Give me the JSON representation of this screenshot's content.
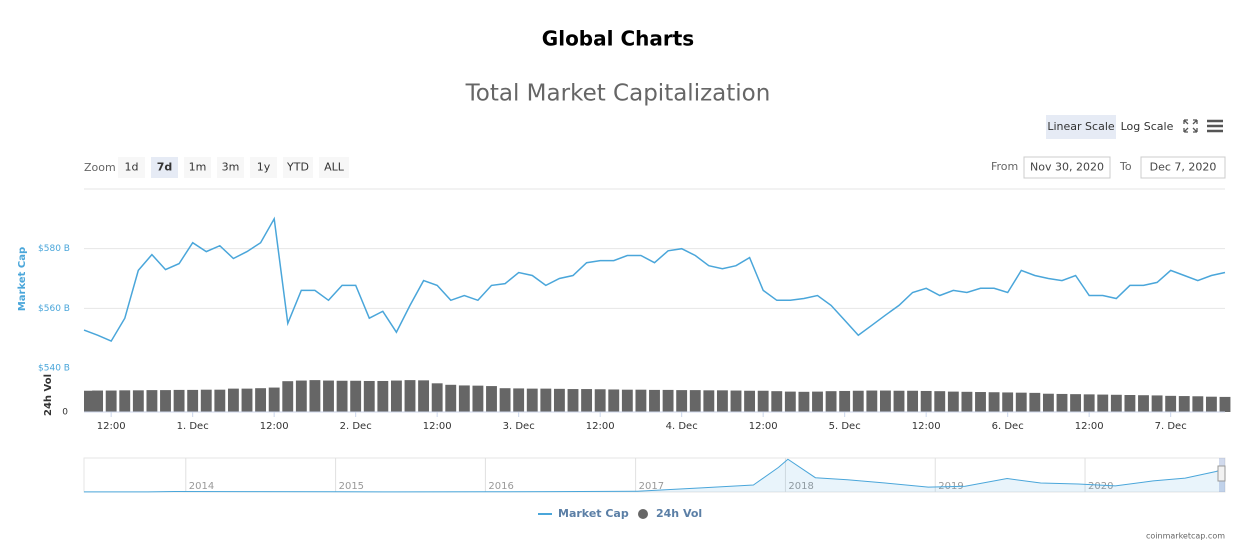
{
  "page_title": "Global Charts",
  "chart_data": {
    "type": "line",
    "title": "Total Market Capitalization",
    "scale_buttons": [
      "Linear Scale",
      "Log Scale"
    ],
    "selected_scale": 0,
    "zoom_label": "Zoom",
    "zoom_buttons": [
      "1d",
      "7d",
      "1m",
      "3m",
      "1y",
      "YTD",
      "ALL"
    ],
    "selected_zoom": 1,
    "from_label": "From",
    "from_date": "Nov 30, 2020",
    "to_label": "To",
    "to_date": "Dec 7, 2020",
    "ylabel": "Market Cap",
    "y2label": "24h Vol",
    "xlim": [
      "2020-11-30T08:00",
      "2020-12-07T08:00"
    ],
    "xticks": [
      {
        "value": "2020-11-30T12:00",
        "label": "12:00"
      },
      {
        "value": "2020-12-01T00:00",
        "label": "1. Dec"
      },
      {
        "value": "2020-12-01T12:00",
        "label": "12:00"
      },
      {
        "value": "2020-12-02T00:00",
        "label": "2. Dec"
      },
      {
        "value": "2020-12-02T12:00",
        "label": "12:00"
      },
      {
        "value": "2020-12-03T00:00",
        "label": "3. Dec"
      },
      {
        "value": "2020-12-03T12:00",
        "label": "12:00"
      },
      {
        "value": "2020-12-04T00:00",
        "label": "4. Dec"
      },
      {
        "value": "2020-12-04T12:00",
        "label": "12:00"
      },
      {
        "value": "2020-12-05T00:00",
        "label": "5. Dec"
      },
      {
        "value": "2020-12-05T12:00",
        "label": "12:00"
      },
      {
        "value": "2020-12-06T00:00",
        "label": "6. Dec"
      },
      {
        "value": "2020-12-06T12:00",
        "label": "12:00"
      },
      {
        "value": "2020-12-07T00:00",
        "label": "7. Dec"
      }
    ],
    "ylim": [
      540,
      600
    ],
    "yticks": [
      {
        "value": 540,
        "label": "$540 B"
      },
      {
        "value": 560,
        "label": "$560 B"
      },
      {
        "value": 580,
        "label": "$580 B"
      }
    ],
    "y2lim": [
      0,
      160
    ],
    "y2ticks": [
      0
    ],
    "grid": true,
    "x": [
      "2020-11-30T08:00",
      "2020-11-30T10:00",
      "2020-11-30T12:00",
      "2020-11-30T14:00",
      "2020-11-30T16:00",
      "2020-11-30T18:00",
      "2020-11-30T20:00",
      "2020-11-30T22:00",
      "2020-12-01T00:00",
      "2020-12-01T02:00",
      "2020-12-01T04:00",
      "2020-12-01T06:00",
      "2020-12-01T08:00",
      "2020-12-01T10:00",
      "2020-12-01T12:00",
      "2020-12-01T14:00",
      "2020-12-01T16:00",
      "2020-12-01T18:00",
      "2020-12-01T20:00",
      "2020-12-01T22:00",
      "2020-12-02T00:00",
      "2020-12-02T02:00",
      "2020-12-02T04:00",
      "2020-12-02T06:00",
      "2020-12-02T08:00",
      "2020-12-02T10:00",
      "2020-12-02T12:00",
      "2020-12-02T14:00",
      "2020-12-02T16:00",
      "2020-12-02T18:00",
      "2020-12-02T20:00",
      "2020-12-02T22:00",
      "2020-12-03T00:00",
      "2020-12-03T02:00",
      "2020-12-03T04:00",
      "2020-12-03T06:00",
      "2020-12-03T08:00",
      "2020-12-03T10:00",
      "2020-12-03T12:00",
      "2020-12-03T14:00",
      "2020-12-03T16:00",
      "2020-12-03T18:00",
      "2020-12-03T20:00",
      "2020-12-03T22:00",
      "2020-12-04T00:00",
      "2020-12-04T02:00",
      "2020-12-04T04:00",
      "2020-12-04T06:00",
      "2020-12-04T08:00",
      "2020-12-04T10:00",
      "2020-12-04T12:00",
      "2020-12-04T14:00",
      "2020-12-04T16:00",
      "2020-12-04T18:00",
      "2020-12-04T20:00",
      "2020-12-04T22:00",
      "2020-12-05T00:00",
      "2020-12-05T02:00",
      "2020-12-05T04:00",
      "2020-12-05T06:00",
      "2020-12-05T08:00",
      "2020-12-05T10:00",
      "2020-12-05T12:00",
      "2020-12-05T14:00",
      "2020-12-05T16:00",
      "2020-12-05T18:00",
      "2020-12-05T20:00",
      "2020-12-05T22:00",
      "2020-12-06T00:00",
      "2020-12-06T02:00",
      "2020-12-06T04:00",
      "2020-12-06T06:00",
      "2020-12-06T08:00",
      "2020-12-06T10:00",
      "2020-12-06T12:00",
      "2020-12-06T14:00",
      "2020-12-06T16:00",
      "2020-12-06T18:00",
      "2020-12-06T20:00",
      "2020-12-06T22:00",
      "2020-12-07T00:00",
      "2020-12-07T02:00",
      "2020-12-07T04:00",
      "2020-12-07T06:00",
      "2020-12-07T08:00"
    ],
    "series": [
      {
        "name": "Market Cap",
        "color": "#4aa6da",
        "values": [
          552.7,
          551,
          549,
          556.7,
          572.7,
          578,
          573,
          575,
          582,
          579,
          581,
          576.7,
          579,
          582,
          590,
          555,
          566,
          566,
          562.7,
          567.7,
          567.7,
          556.7,
          559,
          552,
          561,
          569.3,
          567.7,
          562.7,
          564.3,
          562.7,
          567.7,
          568.3,
          572,
          571,
          567.7,
          570,
          571,
          575.3,
          576,
          576,
          577.7,
          577.7,
          575.3,
          579.3,
          580,
          577.7,
          574.3,
          573.3,
          574.3,
          577,
          566,
          562.7,
          562.7,
          563.3,
          564.3,
          561,
          556,
          551,
          554.3,
          557.7,
          561,
          565.3,
          566.7,
          564.3,
          566,
          565.3,
          566.7,
          566.7,
          565.3,
          572.7,
          571,
          570,
          569.3,
          571,
          564.3,
          564.3,
          563.3,
          567.7,
          567.7,
          568.7,
          572.7,
          571,
          569.3,
          571,
          572
        ]
      },
      {
        "name": "24h Vol",
        "color": "#666666",
        "axis": "y2",
        "values": [
          100,
          101,
          101,
          102,
          102,
          103,
          103,
          104,
          104,
          105,
          105,
          110,
          110,
          112,
          115,
          145,
          148,
          150,
          148,
          147,
          147,
          146,
          146,
          148,
          150,
          149,
          135,
          128,
          125,
          124,
          122,
          112,
          111,
          110,
          110,
          109,
          108,
          108,
          107,
          106,
          105,
          105,
          104,
          104,
          103,
          103,
          102,
          102,
          101,
          100,
          100,
          98,
          96,
          95,
          96,
          98,
          99,
          100,
          101,
          101,
          100,
          100,
          99,
          98,
          96,
          95,
          94,
          93,
          92,
          91,
          90,
          86,
          85,
          84,
          83,
          82,
          81,
          80,
          79,
          78,
          76,
          75,
          74,
          72,
          71
        ]
      }
    ],
    "legend": "bottom",
    "navigator": {
      "xlim": [
        "2013-04-28",
        "2020-12-07"
      ],
      "xticks": [
        {
          "value": "2014-01-01",
          "label": "2014"
        },
        {
          "value": "2015-01-01",
          "label": "2015"
        },
        {
          "value": "2016-01-01",
          "label": "2016"
        },
        {
          "value": "2017-01-01",
          "label": "2017"
        },
        {
          "value": "2018-01-01",
          "label": "2018"
        },
        {
          "value": "2019-01-01",
          "label": "2019"
        },
        {
          "value": "2020-01-01",
          "label": "2020"
        }
      ],
      "ylim": [
        0,
        830
      ],
      "x": [
        "2013-04-28",
        "2013-10-01",
        "2013-12-05",
        "2014-06-01",
        "2015-01-15",
        "2015-06-01",
        "2016-01-01",
        "2016-06-15",
        "2017-01-05",
        "2017-06-10",
        "2017-10-15",
        "2017-12-15",
        "2018-01-07",
        "2018-03-15",
        "2018-06-01",
        "2018-09-01",
        "2018-12-15",
        "2019-03-15",
        "2019-06-25",
        "2019-09-15",
        "2019-12-15",
        "2020-03-15",
        "2020-06-15",
        "2020-09-01",
        "2020-11-15",
        "2020-12-07"
      ],
      "values": [
        1.5,
        2,
        13,
        9,
        5,
        3.5,
        6,
        10,
        17,
        100,
        170,
        600,
        800,
        350,
        300,
        220,
        120,
        140,
        330,
        220,
        195,
        150,
        270,
        340,
        500,
        572
      ]
    },
    "credit": "coinmarketcap.com"
  }
}
